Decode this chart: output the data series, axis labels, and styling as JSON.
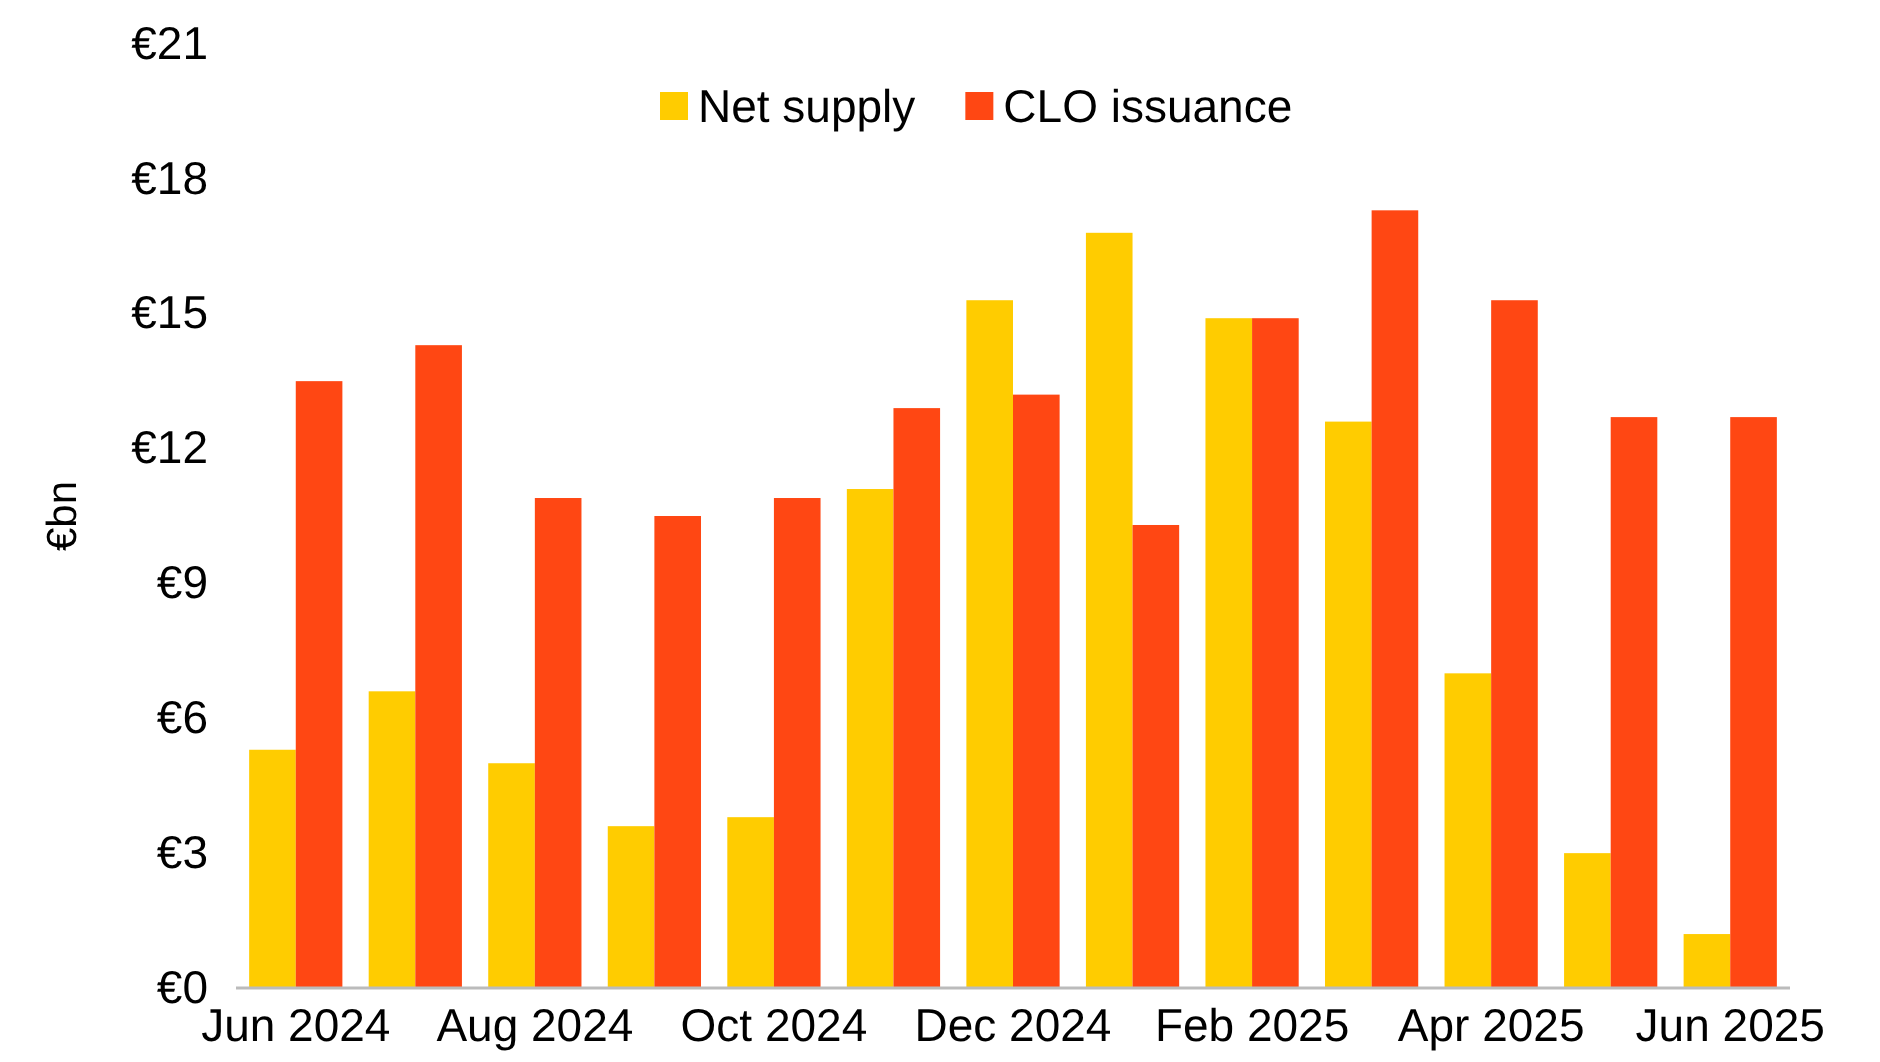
{
  "chart_data": {
    "type": "bar",
    "ylabel": "€bn",
    "categories": [
      "Jun 2024",
      null,
      "Aug 2024",
      null,
      "Oct 2024",
      null,
      "Dec 2024",
      null,
      "Feb 2025",
      null,
      "Apr 2025",
      null,
      "Jun 2025"
    ],
    "series": [
      {
        "name": "Net supply",
        "color": "#ffcc00",
        "values": [
          5.3,
          6.6,
          5.0,
          3.6,
          3.8,
          11.1,
          15.3,
          16.8,
          14.9,
          12.6,
          7.0,
          3.0,
          1.2
        ]
      },
      {
        "name": "CLO issuance",
        "color": "#ff4713",
        "values": [
          13.5,
          14.3,
          10.9,
          10.5,
          10.9,
          12.9,
          13.2,
          10.3,
          14.9,
          17.3,
          15.3,
          12.7,
          12.7
        ]
      }
    ],
    "ylim": [
      0,
      21
    ],
    "yticks": [
      {
        "value": 0,
        "label": "€0"
      },
      {
        "value": 3,
        "label": "€3"
      },
      {
        "value": 6,
        "label": "€6"
      },
      {
        "value": 9,
        "label": "€9"
      },
      {
        "value": 12,
        "label": "€12"
      },
      {
        "value": 15,
        "label": "€15"
      },
      {
        "value": 18,
        "label": "€18"
      },
      {
        "value": 21,
        "label": "€21"
      }
    ],
    "legend": "top"
  }
}
